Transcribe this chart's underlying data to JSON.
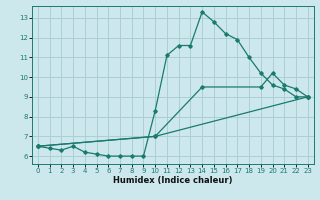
{
  "title": "",
  "xlabel": "Humidex (Indice chaleur)",
  "bg_color": "#cce8ec",
  "grid_color": "#aacfd4",
  "line_color": "#1a7a6e",
  "xlim": [
    -0.5,
    23.5
  ],
  "ylim": [
    5.6,
    13.6
  ],
  "xticks": [
    0,
    1,
    2,
    3,
    4,
    5,
    6,
    7,
    8,
    9,
    10,
    11,
    12,
    13,
    14,
    15,
    16,
    17,
    18,
    19,
    20,
    21,
    22,
    23
  ],
  "yticks": [
    6,
    7,
    8,
    9,
    10,
    11,
    12,
    13
  ],
  "series": [
    {
      "x": [
        0,
        1,
        2,
        3,
        4,
        5,
        6,
        7,
        8,
        9,
        10,
        11,
        12,
        13,
        14,
        15,
        16,
        17,
        18,
        19,
        20,
        21,
        22,
        23
      ],
      "y": [
        6.5,
        6.4,
        6.3,
        6.5,
        6.2,
        6.1,
        6.0,
        6.0,
        6.0,
        6.0,
        8.3,
        11.1,
        11.6,
        11.6,
        13.3,
        12.8,
        12.2,
        11.9,
        11.0,
        10.2,
        9.6,
        9.4,
        9.0,
        9.0
      ]
    },
    {
      "x": [
        0,
        10,
        14,
        19,
        20,
        21,
        22,
        23
      ],
      "y": [
        6.5,
        7.0,
        9.5,
        9.5,
        10.2,
        9.6,
        9.4,
        9.0
      ]
    },
    {
      "x": [
        0,
        10,
        23
      ],
      "y": [
        6.5,
        7.0,
        9.0
      ]
    }
  ]
}
